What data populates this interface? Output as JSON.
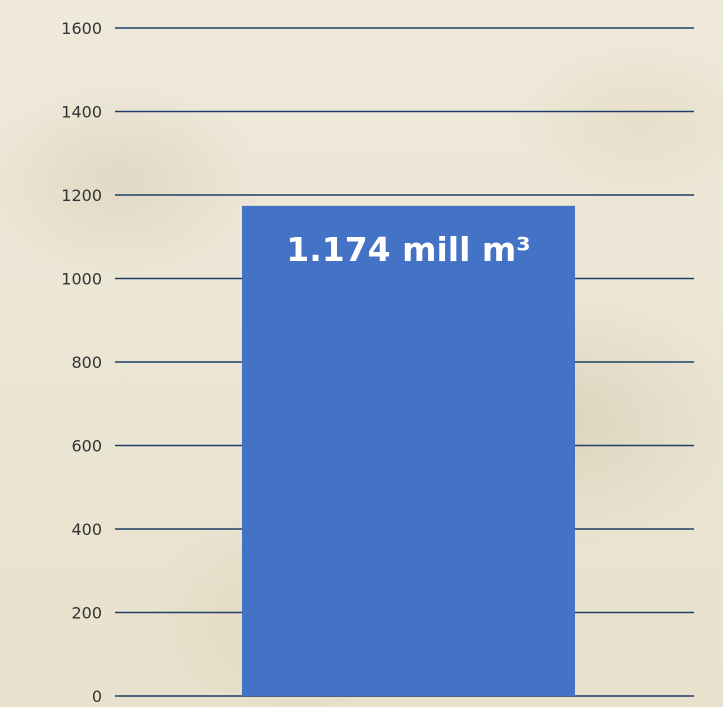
{
  "chart_data": {
    "type": "bar",
    "categories": [
      ""
    ],
    "values": [
      1174
    ],
    "data_labels": [
      "1.174 mill m³"
    ],
    "ylim": [
      0,
      1600
    ],
    "yticks": [
      0,
      200,
      400,
      600,
      800,
      1000,
      1200,
      1400,
      1600
    ],
    "grid": true,
    "title": "",
    "xlabel": "",
    "ylabel": "",
    "colors": {
      "bar": "#4472c4",
      "grid": "#1f3f66",
      "tick_text": "#333333",
      "label_text": "#ffffff"
    }
  }
}
